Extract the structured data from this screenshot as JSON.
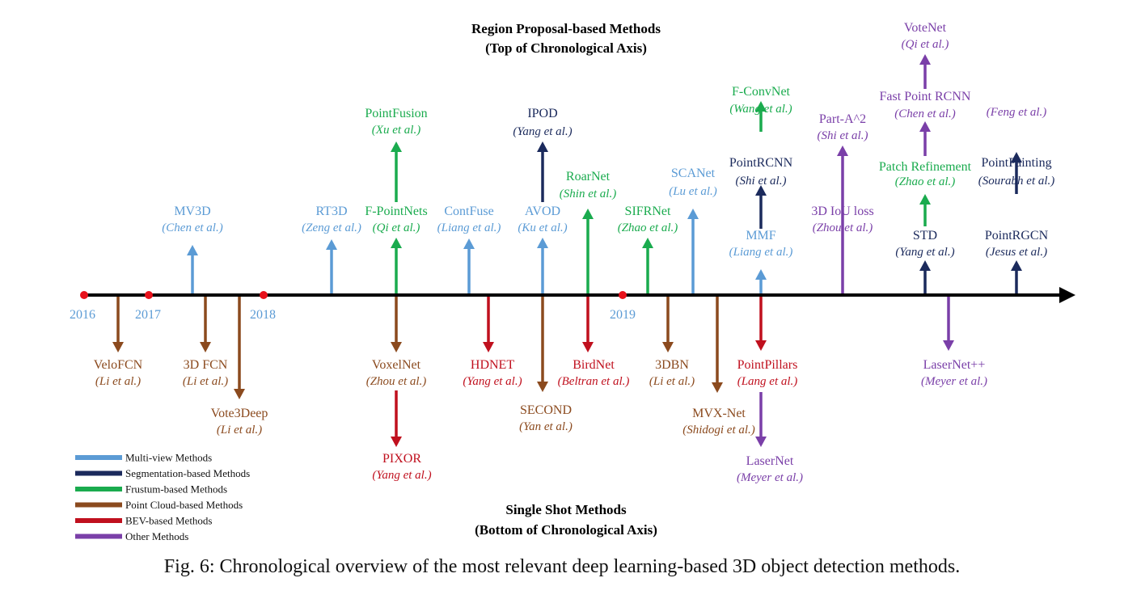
{
  "headings": {
    "top_title": "Region Proposal-based Methods",
    "top_sub": "(Top of Chronological Axis)",
    "bottom_title": "Single Shot Methods",
    "bottom_sub": "(Bottom of Chronological Axis)"
  },
  "caption": "Fig. 6: Chronological overview of the most relevant deep learning-based 3D object detection methods.",
  "colors": {
    "multiview": "#5b9bd5",
    "segmentation": "#1b2a5c",
    "frustum": "#1aab4e",
    "pointcloud": "#8b4a1e",
    "bev": "#c0101e",
    "other": "#7a3fa8",
    "axis": "#000000",
    "year_dot": "#e8121c",
    "year_text": "#5b9bd5"
  },
  "years": [
    "2016",
    "2017",
    "2018",
    "2019"
  ],
  "legend": [
    {
      "label": "Multi-view Methods",
      "cat": "multiview"
    },
    {
      "label": "Segmentation-based Methods",
      "cat": "segmentation"
    },
    {
      "label": "Frustum-based Methods",
      "cat": "frustum"
    },
    {
      "label": "Point Cloud-based Methods",
      "cat": "pointcloud"
    },
    {
      "label": "BEV-based Methods",
      "cat": "bev"
    },
    {
      "label": "Other Methods",
      "cat": "other"
    }
  ],
  "methods": [
    {
      "name": "MV3D",
      "author": "Chen et al.",
      "cat": "multiview"
    },
    {
      "name": "RT3D",
      "author": "Zeng et al.",
      "cat": "multiview"
    },
    {
      "name": "F-PointNets",
      "author": "Qi et al.",
      "cat": "frustum"
    },
    {
      "name": "PointFusion",
      "author": "Xu et al.",
      "cat": "frustum"
    },
    {
      "name": "ContFuse",
      "author": "Liang et al.",
      "cat": "multiview"
    },
    {
      "name": "AVOD",
      "author": "Ku et al.",
      "cat": "multiview"
    },
    {
      "name": "IPOD",
      "author": "Yang et al.",
      "cat": "segmentation"
    },
    {
      "name": "RoarNet",
      "author": "Shin et al.",
      "cat": "frustum"
    },
    {
      "name": "SIFRNet",
      "author": "Zhao et al.",
      "cat": "frustum"
    },
    {
      "name": "SCANet",
      "author": "Lu et al.",
      "cat": "multiview"
    },
    {
      "name": "MMF",
      "author": "Liang et al.",
      "cat": "multiview"
    },
    {
      "name": "PointRCNN",
      "author": "Shi et al.",
      "cat": "segmentation"
    },
    {
      "name": "F-ConvNet",
      "author": "Wang et al.",
      "cat": "frustum"
    },
    {
      "name": "3D IoU loss",
      "author": "Zhou et al.",
      "cat": "other"
    },
    {
      "name": "Part-A^2",
      "author": "Shi et al.",
      "cat": "other"
    },
    {
      "name": "STD",
      "author": "Yang et al.",
      "cat": "segmentation"
    },
    {
      "name": "Patch Refinement",
      "author": "Zhao et al.",
      "cat": "frustum"
    },
    {
      "name": "Fast Point RCNN",
      "author": "Chen et al.",
      "cat": "other"
    },
    {
      "name": "VoteNet",
      "author": "Qi et al.",
      "cat": "other"
    },
    {
      "name": "PointRGCN",
      "author": "Jesus et al.",
      "cat": "segmentation"
    },
    {
      "name": "PointPainting",
      "author": "Sourabh et al.",
      "cat": "segmentation"
    },
    {
      "name": "",
      "author": "Feng et al.",
      "cat": "other"
    },
    {
      "name": "VeloFCN",
      "author": "Li et al.",
      "cat": "pointcloud"
    },
    {
      "name": "3D FCN",
      "author": "Li et al.",
      "cat": "pointcloud"
    },
    {
      "name": "Vote3Deep",
      "author": "Li et al.",
      "cat": "pointcloud"
    },
    {
      "name": "VoxelNet",
      "author": "Zhou et al.",
      "cat": "pointcloud"
    },
    {
      "name": "PIXOR",
      "author": "Yang et al.",
      "cat": "bev"
    },
    {
      "name": "HDNET",
      "author": "Yang et al.",
      "cat": "bev"
    },
    {
      "name": "SECOND",
      "author": "Yan et al.",
      "cat": "pointcloud"
    },
    {
      "name": "BirdNet",
      "author": "Beltran et al.",
      "cat": "bev"
    },
    {
      "name": "3DBN",
      "author": "Li et al.",
      "cat": "pointcloud"
    },
    {
      "name": "MVX-Net",
      "author": "Shidogi et al.",
      "cat": "pointcloud"
    },
    {
      "name": "PointPillars",
      "author": "Lang et al.",
      "cat": "bev"
    },
    {
      "name": "LaserNet",
      "author": "Meyer et al.",
      "cat": "other"
    },
    {
      "name": "LaserNet++",
      "author": "Meyer et al.",
      "cat": "other"
    }
  ]
}
